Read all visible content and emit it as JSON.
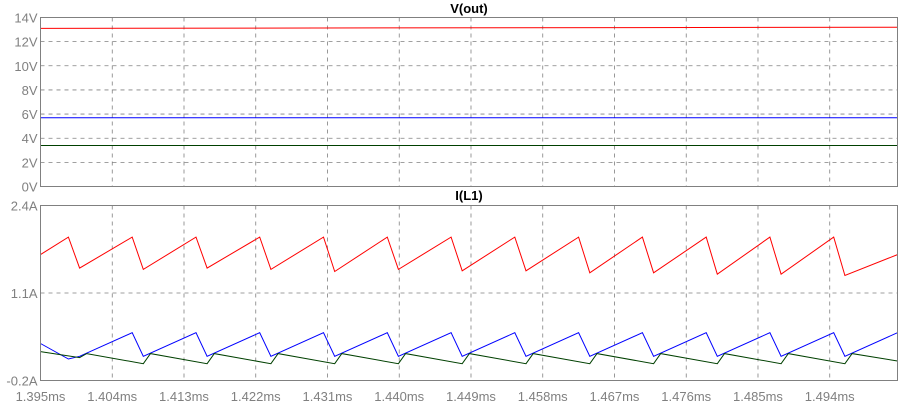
{
  "chart_data": [
    {
      "type": "line",
      "title": "V(out)",
      "xlabel": "",
      "ylabel": "",
      "x_ticks": [
        "1.395ms",
        "1.404ms",
        "1.413ms",
        "1.422ms",
        "1.431ms",
        "1.440ms",
        "1.449ms",
        "1.458ms",
        "1.467ms",
        "1.476ms",
        "1.485ms",
        "1.494ms"
      ],
      "y_ticks": [
        "0V",
        "2V",
        "4V",
        "6V",
        "8V",
        "10V",
        "12V",
        "14V"
      ],
      "xlim": [
        1.395,
        1.5025
      ],
      "ylim": [
        0,
        14
      ],
      "grid": true,
      "series": [
        {
          "color": "#ff0000",
          "x": [
            1.395,
            1.5025
          ],
          "values": [
            13.1,
            13.2
          ]
        },
        {
          "color": "#0000ff",
          "x": [
            1.395,
            1.5025
          ],
          "values": [
            5.7,
            5.7
          ]
        },
        {
          "color": "#004000",
          "x": [
            1.395,
            1.5025
          ],
          "values": [
            3.4,
            3.4
          ]
        }
      ]
    },
    {
      "type": "line",
      "title": "I(L1)",
      "xlabel": "",
      "ylabel": "",
      "x_ticks": [
        "1.395ms",
        "1.404ms",
        "1.413ms",
        "1.422ms",
        "1.431ms",
        "1.440ms",
        "1.449ms",
        "1.458ms",
        "1.467ms",
        "1.476ms",
        "1.485ms",
        "1.494ms"
      ],
      "y_ticks": [
        "-0.2A",
        "1.1A",
        "2.4A"
      ],
      "xlim": [
        1.395,
        1.5025
      ],
      "ylim": [
        -0.2,
        2.4
      ],
      "grid": true,
      "series": [
        {
          "color": "#ff0000",
          "x": [
            1.395,
            1.3985,
            1.3999,
            1.4065,
            1.4079,
            1.4145,
            1.4159,
            1.4225,
            1.4239,
            1.4305,
            1.4319,
            1.4385,
            1.4399,
            1.4465,
            1.4479,
            1.4545,
            1.4559,
            1.4625,
            1.4639,
            1.4705,
            1.4719,
            1.4785,
            1.4799,
            1.4865,
            1.4879,
            1.4945,
            1.4959,
            1.5025
          ],
          "values": [
            1.67,
            1.93,
            1.47,
            1.93,
            1.45,
            1.93,
            1.47,
            1.93,
            1.45,
            1.93,
            1.42,
            1.93,
            1.45,
            1.93,
            1.43,
            1.93,
            1.43,
            1.93,
            1.4,
            1.93,
            1.4,
            1.93,
            1.38,
            1.93,
            1.38,
            1.93,
            1.36,
            1.67
          ]
        },
        {
          "color": "#0000ff",
          "x": [
            1.395,
            1.3985,
            1.3999,
            1.4065,
            1.4079,
            1.4145,
            1.4159,
            1.4225,
            1.4239,
            1.4305,
            1.4319,
            1.4385,
            1.4399,
            1.4465,
            1.4479,
            1.4545,
            1.4559,
            1.4625,
            1.4639,
            1.4705,
            1.4719,
            1.4785,
            1.4799,
            1.4865,
            1.4879,
            1.4945,
            1.4959,
            1.5025
          ],
          "values": [
            0.35,
            0.12,
            0.16,
            0.51,
            0.16,
            0.51,
            0.16,
            0.51,
            0.16,
            0.51,
            0.16,
            0.51,
            0.16,
            0.51,
            0.16,
            0.51,
            0.16,
            0.51,
            0.16,
            0.51,
            0.16,
            0.51,
            0.16,
            0.51,
            0.16,
            0.51,
            0.16,
            0.51
          ]
        },
        {
          "color": "#004000",
          "x": [
            1.395,
            1.3999,
            1.4008,
            1.4079,
            1.4088,
            1.4159,
            1.4168,
            1.4239,
            1.4248,
            1.4319,
            1.4328,
            1.4399,
            1.4408,
            1.4479,
            1.4488,
            1.4559,
            1.4568,
            1.4639,
            1.4648,
            1.4719,
            1.4728,
            1.4799,
            1.4808,
            1.4879,
            1.4888,
            1.4959,
            1.4968,
            1.5025
          ],
          "values": [
            0.23,
            0.14,
            0.2,
            0.05,
            0.2,
            0.05,
            0.2,
            0.05,
            0.2,
            0.05,
            0.2,
            0.05,
            0.2,
            0.05,
            0.2,
            0.05,
            0.2,
            0.05,
            0.2,
            0.05,
            0.2,
            0.05,
            0.2,
            0.05,
            0.2,
            0.05,
            0.2,
            0.09
          ]
        }
      ]
    }
  ],
  "colors": {
    "frame": "#808080",
    "grid": "#808080",
    "labels": "#808080",
    "title": "#000000"
  }
}
